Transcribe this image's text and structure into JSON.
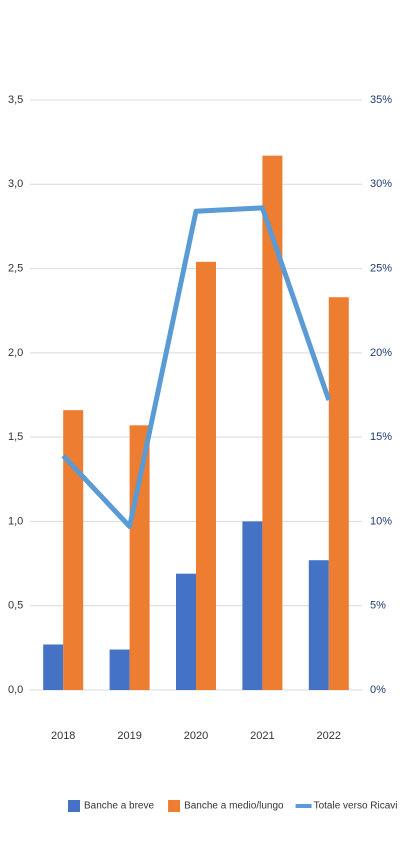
{
  "chart_data": {
    "type": "bar",
    "categories": [
      "2018",
      "2019",
      "2020",
      "2021",
      "2022"
    ],
    "series": [
      {
        "name": "Banche a breve",
        "type": "bar",
        "color": "#4472c4",
        "values": [
          0.27,
          0.24,
          0.69,
          1.0,
          0.77
        ]
      },
      {
        "name": "Banche a medio/lungo",
        "type": "bar",
        "color": "#ed7d31",
        "values": [
          1.66,
          1.57,
          2.54,
          3.17,
          2.33
        ]
      },
      {
        "name": "Totale verso Ricavi",
        "type": "line",
        "axis": "y2",
        "color": "#5b9bd5",
        "values": [
          13.9,
          9.7,
          28.4,
          28.6,
          17.2
        ]
      }
    ],
    "ylim": [
      0,
      3.5
    ],
    "yticks": [
      {
        "value": 0,
        "label": "0,0"
      },
      {
        "value": 0.5,
        "label": "0,5"
      },
      {
        "value": 1,
        "label": "1,0"
      },
      {
        "value": 1.5,
        "label": "1,5"
      },
      {
        "value": 2,
        "label": "2,0"
      },
      {
        "value": 2.5,
        "label": "2,5"
      },
      {
        "value": 3,
        "label": "3,0"
      },
      {
        "value": 3.5,
        "label": "3,5"
      }
    ],
    "y2lim": [
      0,
      35
    ],
    "y2ticks": [
      {
        "value": 0,
        "label": "0%"
      },
      {
        "value": 5,
        "label": "5%"
      },
      {
        "value": 10,
        "label": "10%"
      },
      {
        "value": 15,
        "label": "15%"
      },
      {
        "value": 20,
        "label": "20%"
      },
      {
        "value": 25,
        "label": "25%"
      },
      {
        "value": 30,
        "label": "30%"
      },
      {
        "value": 35,
        "label": "35%"
      }
    ],
    "grid": true,
    "legend": "bottom"
  }
}
